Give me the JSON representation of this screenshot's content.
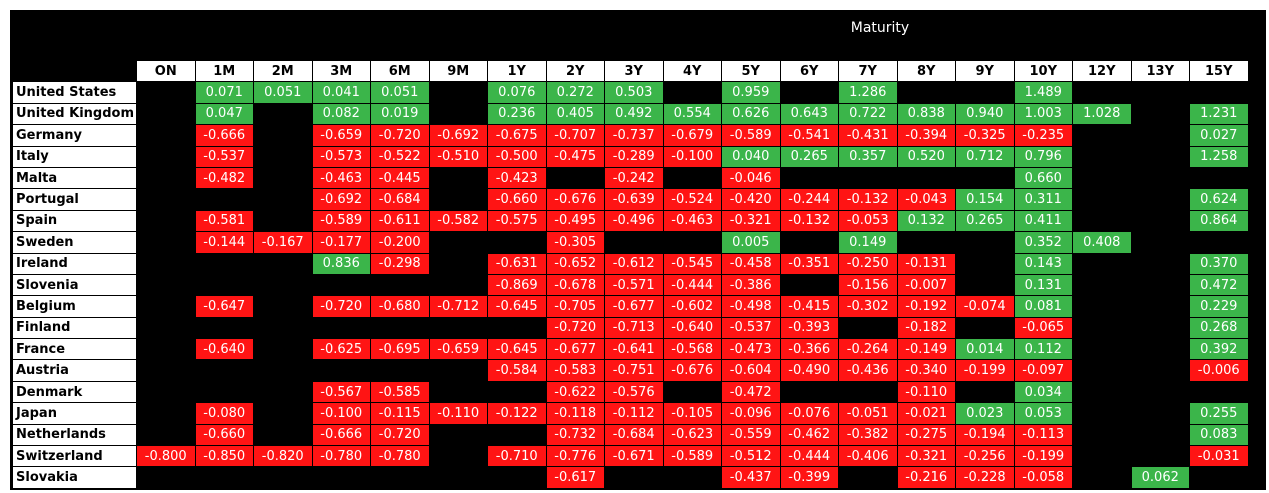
{
  "chart_data": {
    "type": "heatmap",
    "title": "Maturity",
    "columns": [
      "ON",
      "1M",
      "2M",
      "3M",
      "6M",
      "9M",
      "1Y",
      "2Y",
      "3Y",
      "4Y",
      "5Y",
      "6Y",
      "7Y",
      "8Y",
      "9Y",
      "10Y",
      "12Y",
      "13Y",
      "15Y"
    ],
    "rows": [
      {
        "label": "United States",
        "values": [
          null,
          "0.071",
          "0.051",
          "0.041",
          "0.051",
          null,
          "0.076",
          "0.272",
          "0.503",
          null,
          "0.959",
          null,
          "1.286",
          null,
          null,
          "1.489",
          null,
          null,
          null
        ]
      },
      {
        "label": "United Kingdom",
        "values": [
          null,
          "0.047",
          null,
          "0.082",
          "0.019",
          null,
          "0.236",
          "0.405",
          "0.492",
          "0.554",
          "0.626",
          "0.643",
          "0.722",
          "0.838",
          "0.940",
          "1.003",
          "1.028",
          null,
          "1.231"
        ]
      },
      {
        "label": "Germany",
        "values": [
          null,
          "-0.666",
          null,
          "-0.659",
          "-0.720",
          "-0.692",
          "-0.675",
          "-0.707",
          "-0.737",
          "-0.679",
          "-0.589",
          "-0.541",
          "-0.431",
          "-0.394",
          "-0.325",
          "-0.235",
          null,
          null,
          "0.027"
        ]
      },
      {
        "label": "Italy",
        "values": [
          null,
          "-0.537",
          null,
          "-0.573",
          "-0.522",
          "-0.510",
          "-0.500",
          "-0.475",
          "-0.289",
          "-0.100",
          "0.040",
          "0.265",
          "0.357",
          "0.520",
          "0.712",
          "0.796",
          null,
          null,
          "1.258"
        ]
      },
      {
        "label": "Malta",
        "values": [
          null,
          "-0.482",
          null,
          "-0.463",
          "-0.445",
          null,
          "-0.423",
          null,
          "-0.242",
          null,
          "-0.046",
          null,
          null,
          null,
          null,
          "0.660",
          null,
          null,
          null
        ]
      },
      {
        "label": "Portugal",
        "values": [
          null,
          null,
          null,
          "-0.692",
          "-0.684",
          null,
          "-0.660",
          "-0.676",
          "-0.639",
          "-0.524",
          "-0.420",
          "-0.244",
          "-0.132",
          "-0.043",
          "0.154",
          "0.311",
          null,
          null,
          "0.624"
        ]
      },
      {
        "label": "Spain",
        "values": [
          null,
          "-0.581",
          null,
          "-0.589",
          "-0.611",
          "-0.582",
          "-0.575",
          "-0.495",
          "-0.496",
          "-0.463",
          "-0.321",
          "-0.132",
          "-0.053",
          "0.132",
          "0.265",
          "0.411",
          null,
          null,
          "0.864"
        ]
      },
      {
        "label": "Sweden",
        "values": [
          null,
          "-0.144",
          "-0.167",
          "-0.177",
          "-0.200",
          null,
          null,
          "-0.305",
          null,
          null,
          "0.005",
          null,
          "0.149",
          null,
          null,
          "0.352",
          "0.408",
          null,
          null
        ]
      },
      {
        "label": "Ireland",
        "values": [
          null,
          null,
          null,
          "0.836",
          "-0.298",
          null,
          "-0.631",
          "-0.652",
          "-0.612",
          "-0.545",
          "-0.458",
          "-0.351",
          "-0.250",
          "-0.131",
          null,
          "0.143",
          null,
          null,
          "0.370"
        ]
      },
      {
        "label": "Slovenia",
        "values": [
          null,
          null,
          null,
          null,
          null,
          null,
          "-0.869",
          "-0.678",
          "-0.571",
          "-0.444",
          "-0.386",
          null,
          "-0.156",
          "-0.007",
          null,
          "0.131",
          null,
          null,
          "0.472"
        ]
      },
      {
        "label": "Belgium",
        "values": [
          null,
          "-0.647",
          null,
          "-0.720",
          "-0.680",
          "-0.712",
          "-0.645",
          "-0.705",
          "-0.677",
          "-0.602",
          "-0.498",
          "-0.415",
          "-0.302",
          "-0.192",
          "-0.074",
          "0.081",
          null,
          null,
          "0.229"
        ]
      },
      {
        "label": "Finland",
        "values": [
          null,
          null,
          null,
          null,
          null,
          null,
          null,
          "-0.720",
          "-0.713",
          "-0.640",
          "-0.537",
          "-0.393",
          null,
          "-0.182",
          null,
          "-0.065",
          null,
          null,
          "0.268"
        ]
      },
      {
        "label": "France",
        "values": [
          null,
          "-0.640",
          null,
          "-0.625",
          "-0.695",
          "-0.659",
          "-0.645",
          "-0.677",
          "-0.641",
          "-0.568",
          "-0.473",
          "-0.366",
          "-0.264",
          "-0.149",
          "0.014",
          "0.112",
          null,
          null,
          "0.392"
        ]
      },
      {
        "label": "Austria",
        "values": [
          null,
          null,
          null,
          null,
          null,
          null,
          "-0.584",
          "-0.583",
          "-0.751",
          "-0.676",
          "-0.604",
          "-0.490",
          "-0.436",
          "-0.340",
          "-0.199",
          "-0.097",
          null,
          null,
          "-0.006"
        ]
      },
      {
        "label": "Denmark",
        "values": [
          null,
          null,
          null,
          "-0.567",
          "-0.585",
          null,
          null,
          "-0.622",
          "-0.576",
          null,
          "-0.472",
          null,
          null,
          "-0.110",
          null,
          "0.034",
          null,
          null,
          null
        ]
      },
      {
        "label": "Japan",
        "values": [
          null,
          "-0.080",
          null,
          "-0.100",
          "-0.115",
          "-0.110",
          "-0.122",
          "-0.118",
          "-0.112",
          "-0.105",
          "-0.096",
          "-0.076",
          "-0.051",
          "-0.021",
          "0.023",
          "0.053",
          null,
          null,
          "0.255"
        ]
      },
      {
        "label": "Netherlands",
        "values": [
          null,
          "-0.660",
          null,
          "-0.666",
          "-0.720",
          null,
          null,
          "-0.732",
          "-0.684",
          "-0.623",
          "-0.559",
          "-0.462",
          "-0.382",
          "-0.275",
          "-0.194",
          "-0.113",
          null,
          null,
          "0.083"
        ]
      },
      {
        "label": "Switzerland",
        "values": [
          "-0.800",
          "-0.850",
          "-0.820",
          "-0.780",
          "-0.780",
          null,
          "-0.710",
          "-0.776",
          "-0.671",
          "-0.589",
          "-0.512",
          "-0.444",
          "-0.406",
          "-0.321",
          "-0.256",
          "-0.199",
          null,
          null,
          "-0.031"
        ]
      },
      {
        "label": "Slovakia",
        "values": [
          null,
          null,
          null,
          null,
          null,
          null,
          null,
          "-0.617",
          null,
          null,
          "-0.437",
          "-0.399",
          null,
          "-0.216",
          "-0.228",
          "-0.058",
          null,
          "0.062",
          null
        ]
      }
    ],
    "colors": {
      "positive": "#3bb54a",
      "negative": "#ff1414",
      "empty": "#000000"
    }
  }
}
